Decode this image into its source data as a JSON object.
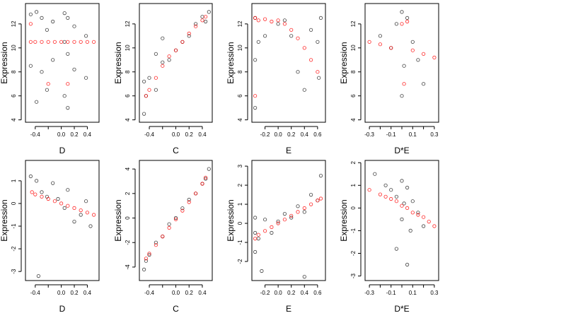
{
  "chart_data": [
    {
      "type": "scatter",
      "title": "",
      "xlabel": "D",
      "ylabel": "Expression",
      "xlim": [
        -0.55,
        0.58
      ],
      "ylim": [
        3.8,
        13.7
      ],
      "xticks": [
        -0.4,
        -0.2,
        0.0,
        0.2,
        0.4
      ],
      "xticklabels": [
        "-0.4",
        "",
        "0.0",
        "0.2",
        "0.4"
      ],
      "yticks": [
        4,
        6,
        8,
        10,
        12
      ],
      "yticklabels": [
        "4",
        "6",
        "8",
        "10",
        "12"
      ],
      "series": [
        {
          "color": "#000000",
          "x": [
            -0.47,
            -0.47,
            -0.38,
            -0.38,
            -0.3,
            -0.3,
            -0.22,
            -0.22,
            -0.13,
            -0.13,
            0.05,
            0.05,
            0.05,
            0.1,
            0.1,
            0.1,
            0.2,
            0.2,
            0.38,
            0.38
          ],
          "y": [
            12.8,
            8.5,
            13.0,
            5.5,
            12.5,
            8.0,
            11.5,
            6.5,
            12.2,
            9.0,
            12.9,
            10.5,
            6.0,
            12.5,
            9.5,
            5.0,
            11.8,
            8.2,
            11.0,
            7.5
          ]
        },
        {
          "color": "#ff0000",
          "x": [
            -0.47,
            -0.4,
            -0.3,
            -0.2,
            -0.1,
            0.0,
            0.1,
            0.2,
            0.3,
            0.4,
            0.5,
            -0.47,
            -0.2,
            0.1
          ],
          "y": [
            10.5,
            10.5,
            10.5,
            10.5,
            10.5,
            10.5,
            10.5,
            10.5,
            10.5,
            10.5,
            10.5,
            12.0,
            7.0,
            7.0
          ]
        }
      ]
    },
    {
      "type": "scatter",
      "title": "",
      "xlabel": "C",
      "ylabel": "Expression",
      "xlim": [
        -0.55,
        0.55
      ],
      "ylim": [
        3.8,
        13.7
      ],
      "xticks": [
        -0.4,
        -0.2,
        0.0,
        0.2,
        0.4
      ],
      "xticklabels": [
        "-0.4",
        "",
        "0.0",
        "0.2",
        "0.4"
      ],
      "yticks": [
        4,
        6,
        8,
        10,
        12
      ],
      "yticklabels": [
        "4",
        "6",
        "8",
        "10",
        "12"
      ],
      "series": [
        {
          "color": "#000000",
          "x": [
            -0.48,
            -0.48,
            -0.45,
            -0.4,
            -0.3,
            -0.3,
            -0.2,
            -0.2,
            -0.1,
            0.0,
            0.1,
            0.2,
            0.3,
            0.4,
            0.45,
            0.5
          ],
          "y": [
            4.5,
            7.2,
            6.0,
            7.5,
            9.5,
            6.5,
            10.8,
            8.8,
            9.0,
            9.8,
            10.5,
            11.0,
            12.0,
            12.6,
            12.2,
            13.0
          ]
        },
        {
          "color": "#ff0000",
          "x": [
            -0.45,
            -0.4,
            -0.3,
            -0.2,
            -0.1,
            0.0,
            0.1,
            0.2,
            0.3,
            0.4,
            0.45
          ],
          "y": [
            6.0,
            6.5,
            7.5,
            8.5,
            9.3,
            9.8,
            10.5,
            11.2,
            11.8,
            12.3,
            12.6
          ]
        }
      ]
    },
    {
      "type": "scatter",
      "title": "",
      "xlabel": "E",
      "ylabel": "Expression",
      "xlim": [
        -0.4,
        0.72
      ],
      "ylim": [
        3.8,
        13.7
      ],
      "xticks": [
        -0.2,
        0.0,
        0.2,
        0.4,
        0.6
      ],
      "xticklabels": [
        "-0.2",
        "0.0",
        "0.2",
        "0.4",
        "0.6"
      ],
      "yticks": [
        4,
        6,
        8,
        10,
        12
      ],
      "yticklabels": [
        "4",
        "6",
        "8",
        "10",
        "12"
      ],
      "series": [
        {
          "color": "#000000",
          "x": [
            -0.35,
            -0.35,
            -0.35,
            -0.3,
            -0.2,
            0.0,
            0.1,
            0.2,
            0.3,
            0.4,
            0.5,
            0.6,
            0.62,
            0.65
          ],
          "y": [
            5.0,
            9.0,
            12.5,
            10.5,
            11.0,
            12.0,
            12.3,
            11.0,
            8.0,
            6.5,
            11.5,
            10.5,
            7.5,
            12.5
          ]
        },
        {
          "color": "#ff0000",
          "x": [
            -0.35,
            -0.35,
            -0.3,
            -0.2,
            -0.1,
            0.0,
            0.1,
            0.2,
            0.3,
            0.4,
            0.5,
            0.6
          ],
          "y": [
            12.5,
            6.0,
            12.3,
            12.4,
            12.2,
            12.3,
            12.0,
            11.5,
            10.8,
            10.0,
            9.0,
            8.0
          ]
        }
      ]
    },
    {
      "type": "scatter",
      "title": "",
      "xlabel": "D*E",
      "ylabel": "Expression",
      "xlim": [
        -0.34,
        0.34
      ],
      "ylim": [
        3.8,
        13.7
      ],
      "xticks": [
        -0.3,
        -0.2,
        -0.1,
        0.0,
        0.1,
        0.2,
        0.3
      ],
      "xticklabels": [
        "-0.3",
        "",
        "-0.1",
        "",
        "0.1",
        "",
        "0.3"
      ],
      "yticks": [
        4,
        6,
        8,
        10,
        12
      ],
      "yticklabels": [
        "4",
        "6",
        "8",
        "10",
        "12"
      ],
      "series": [
        {
          "color": "#000000",
          "x": [
            -0.2,
            -0.1,
            -0.05,
            0.0,
            0.0,
            0.02,
            0.05,
            0.1,
            0.15,
            0.2
          ],
          "y": [
            11.0,
            10.0,
            12.0,
            13.0,
            6.0,
            8.5,
            12.5,
            10.5,
            9.0,
            7.0
          ]
        },
        {
          "color": "#ff0000",
          "x": [
            -0.3,
            -0.2,
            -0.1,
            0.0,
            0.02,
            0.05,
            0.1,
            0.2,
            0.3
          ],
          "y": [
            10.5,
            10.3,
            10.0,
            12.0,
            7.0,
            12.2,
            9.8,
            9.5,
            9.2
          ]
        }
      ]
    },
    {
      "type": "scatter",
      "title": "",
      "xlabel": "D",
      "ylabel": "Expression",
      "xlim": [
        -0.55,
        0.58
      ],
      "ylim": [
        -3.4,
        1.9
      ],
      "xticks": [
        -0.4,
        -0.2,
        0.0,
        0.2,
        0.4
      ],
      "xticklabels": [
        "-0.4",
        "",
        "0.0",
        "0.2",
        "0.4"
      ],
      "yticks": [
        -3,
        -2,
        -1,
        0,
        1
      ],
      "yticklabels": [
        "-3",
        "-2",
        "-1",
        "0",
        "1"
      ],
      "series": [
        {
          "color": "#000000",
          "x": [
            -0.47,
            -0.38,
            -0.3,
            -0.22,
            -0.13,
            -0.05,
            0.05,
            0.1,
            0.2,
            0.3,
            0.38,
            0.45,
            -0.35
          ],
          "y": [
            1.2,
            1.0,
            0.5,
            0.3,
            0.9,
            0.2,
            -0.2,
            0.6,
            -0.8,
            -0.5,
            0.1,
            -1.0,
            -3.2
          ]
        },
        {
          "color": "#ff0000",
          "x": [
            -0.45,
            -0.4,
            -0.3,
            -0.2,
            -0.1,
            0.0,
            0.1,
            0.2,
            0.3,
            0.4,
            0.5
          ],
          "y": [
            0.5,
            0.4,
            0.3,
            0.2,
            0.1,
            0.0,
            -0.1,
            -0.2,
            -0.3,
            -0.4,
            -0.5
          ]
        }
      ]
    },
    {
      "type": "scatter",
      "title": "",
      "xlabel": "C",
      "ylabel": "Expression",
      "xlim": [
        -0.55,
        0.55
      ],
      "ylim": [
        -5.1,
        4.7
      ],
      "xticks": [
        -0.4,
        -0.2,
        0.0,
        0.2,
        0.4
      ],
      "xticklabels": [
        "-0.4",
        "",
        "0.0",
        "0.2",
        "0.4"
      ],
      "yticks": [
        -4,
        -2,
        0,
        2,
        4
      ],
      "yticklabels": [
        "-4",
        "-2",
        "0",
        "2",
        "4"
      ],
      "series": [
        {
          "color": "#000000",
          "x": [
            -0.48,
            -0.45,
            -0.4,
            -0.3,
            -0.2,
            -0.1,
            0.0,
            0.1,
            0.2,
            0.3,
            0.4,
            0.45,
            0.5
          ],
          "y": [
            -4.2,
            -3.5,
            -3.0,
            -2.0,
            -1.5,
            -0.5,
            0.0,
            0.8,
            1.5,
            2.0,
            2.8,
            3.2,
            4.0
          ]
        },
        {
          "color": "#ff0000",
          "x": [
            -0.45,
            -0.4,
            -0.3,
            -0.2,
            -0.1,
            0.0,
            0.1,
            0.2,
            0.3,
            0.4,
            0.45
          ],
          "y": [
            -3.3,
            -2.9,
            -2.2,
            -1.5,
            -0.8,
            -0.1,
            0.6,
            1.3,
            2.0,
            2.8,
            3.3
          ]
        }
      ]
    },
    {
      "type": "scatter",
      "title": "",
      "xlabel": "E",
      "ylabel": "Expression",
      "xlim": [
        -0.4,
        0.72
      ],
      "ylim": [
        -3.0,
        3.3
      ],
      "xticks": [
        -0.2,
        0.0,
        0.2,
        0.4,
        0.6
      ],
      "xticklabels": [
        "-0.2",
        "0.0",
        "0.2",
        "0.4",
        "0.6"
      ],
      "yticks": [
        -2,
        -1,
        0,
        1,
        2,
        3
      ],
      "yticklabels": [
        "-2",
        "-1",
        "0",
        "1",
        "2",
        "3"
      ],
      "series": [
        {
          "color": "#000000",
          "x": [
            -0.35,
            -0.35,
            -0.35,
            -0.3,
            -0.2,
            -0.1,
            0.0,
            0.1,
            0.2,
            0.3,
            0.4,
            0.5,
            0.6,
            0.65,
            -0.25,
            0.4
          ],
          "y": [
            -0.5,
            -1.5,
            0.3,
            -0.8,
            0.2,
            -0.5,
            0.1,
            0.5,
            0.3,
            0.9,
            0.6,
            1.5,
            1.2,
            2.5,
            -2.5,
            -2.8
          ]
        },
        {
          "color": "#ff0000",
          "x": [
            -0.35,
            -0.3,
            -0.2,
            -0.1,
            0.0,
            0.1,
            0.2,
            0.3,
            0.4,
            0.5,
            0.6,
            0.65
          ],
          "y": [
            -0.8,
            -0.6,
            -0.4,
            -0.2,
            0.0,
            0.2,
            0.4,
            0.6,
            0.8,
            1.0,
            1.2,
            1.3
          ]
        }
      ]
    },
    {
      "type": "scatter",
      "title": "",
      "xlabel": "D*E",
      "ylabel": "Expression",
      "xlim": [
        -0.34,
        0.34
      ],
      "ylim": [
        -3.2,
        2.1
      ],
      "xticks": [
        -0.3,
        -0.2,
        -0.1,
        0.0,
        0.1,
        0.2,
        0.3
      ],
      "xticklabels": [
        "-0.3",
        "",
        "-0.1",
        "",
        "0.1",
        "",
        "0.3"
      ],
      "yticks": [
        -3,
        -2,
        -1,
        0,
        1,
        2
      ],
      "yticklabels": [
        "-3",
        "-2",
        "-1",
        "0",
        "1",
        "2"
      ],
      "series": [
        {
          "color": "#000000",
          "x": [
            -0.25,
            -0.15,
            -0.1,
            -0.05,
            0.0,
            0.0,
            0.02,
            0.05,
            0.08,
            0.1,
            0.15,
            0.2,
            0.05,
            -0.05
          ],
          "y": [
            1.5,
            1.0,
            0.8,
            0.5,
            1.2,
            -0.5,
            0.2,
            0.9,
            -1.0,
            0.3,
            -0.2,
            -0.8,
            -2.5,
            -1.8
          ]
        },
        {
          "color": "#ff0000",
          "x": [
            -0.3,
            -0.2,
            -0.15,
            -0.1,
            -0.05,
            0.0,
            0.05,
            0.1,
            0.15,
            0.2,
            0.25,
            0.3
          ],
          "y": [
            0.8,
            0.6,
            0.5,
            0.4,
            0.3,
            0.1,
            0.0,
            -0.2,
            -0.3,
            -0.4,
            -0.6,
            -0.8
          ]
        }
      ]
    }
  ]
}
